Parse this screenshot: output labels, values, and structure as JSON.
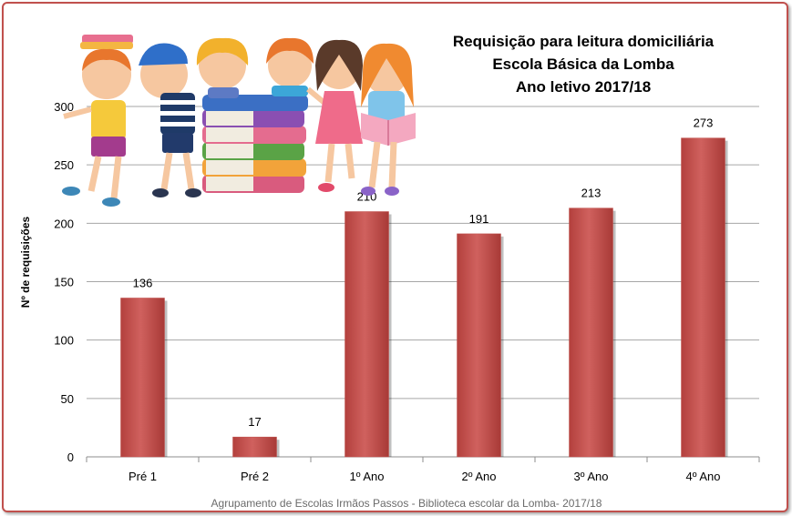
{
  "chart_data": {
    "type": "bar",
    "title_lines": [
      "Requisição para leitura domiciliária",
      "Escola Básica da Lomba",
      "Ano letivo 2017/18"
    ],
    "categories": [
      "Pré 1",
      "Pré 2",
      "1º Ano",
      "2º Ano",
      "3º Ano",
      "4º Ano"
    ],
    "values": [
      136,
      17,
      210,
      191,
      213,
      273
    ],
    "ylabel": "Nº de requisições",
    "xlabel": "",
    "ylim": [
      0,
      300
    ],
    "yticks": [
      0,
      50,
      100,
      150,
      200,
      250,
      300
    ],
    "grid": true,
    "data_labels": true,
    "bar_color": "#c0504d",
    "frame_color": "#c0504d"
  },
  "footer": "Agrupamento de Escolas Irmãos Passos - Biblioteca escolar da Lomba- 2017/18",
  "illustration": "children-with-books-clipart"
}
